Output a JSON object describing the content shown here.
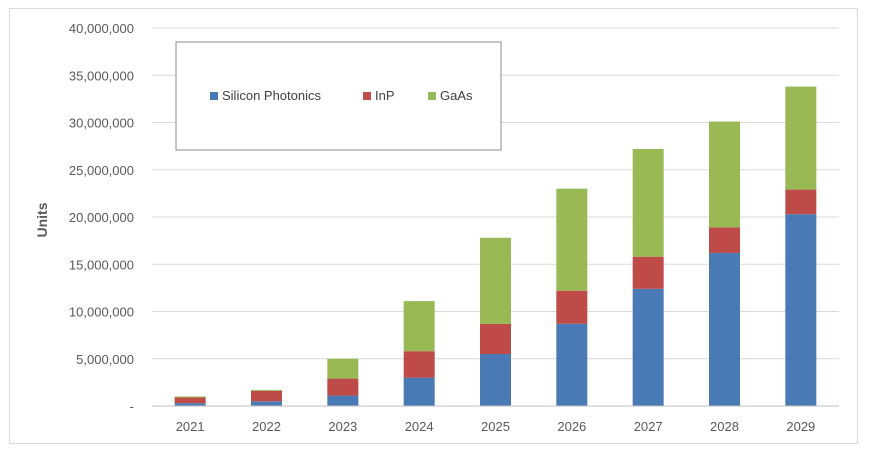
{
  "chart_data": {
    "type": "bar",
    "stacked": true,
    "title": "",
    "xlabel": "",
    "ylabel": "Units",
    "ylim": [
      0,
      40000000
    ],
    "yticks": [
      0,
      5000000,
      10000000,
      15000000,
      20000000,
      25000000,
      30000000,
      35000000,
      40000000
    ],
    "ytick_labels": [
      "-",
      "5,000,000",
      "10,000,000",
      "15,000,000",
      "20,000,000",
      "25,000,000",
      "30,000,000",
      "35,000,000",
      "40,000,000"
    ],
    "categories": [
      "2021",
      "2022",
      "2023",
      "2024",
      "2025",
      "2026",
      "2027",
      "2028",
      "2029"
    ],
    "series": [
      {
        "name": "Silicon Photonics",
        "color": "#4a7ab5",
        "values": [
          300000,
          500000,
          1100000,
          3000000,
          5500000,
          8700000,
          12400000,
          16200000,
          20300000
        ]
      },
      {
        "name": "InP",
        "color": "#be4b48",
        "values": [
          600000,
          1100000,
          1800000,
          2800000,
          3200000,
          3500000,
          3400000,
          2700000,
          2600000
        ]
      },
      {
        "name": "GaAs",
        "color": "#98b954",
        "values": [
          100000,
          100000,
          2100000,
          5300000,
          9100000,
          10800000,
          11400000,
          11200000,
          10900000
        ]
      }
    ],
    "grid": true,
    "legend_position": "top-left"
  }
}
